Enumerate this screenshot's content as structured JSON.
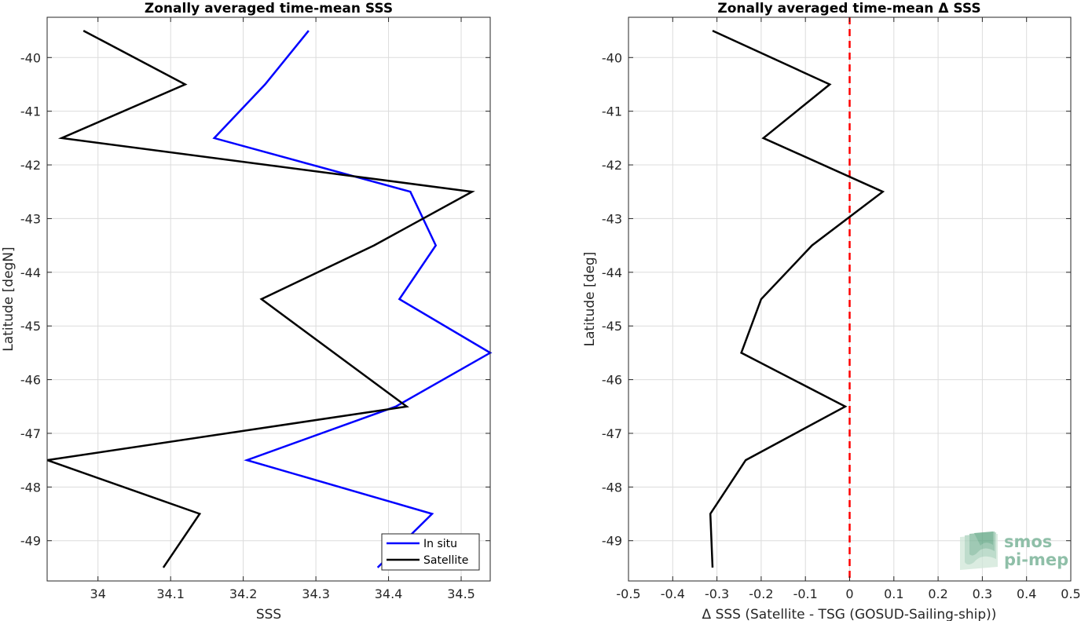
{
  "chart_data": [
    {
      "type": "line",
      "title": "Zonally averaged time-mean SSS",
      "xlabel": "SSS",
      "ylabel": "Latitude [degN]",
      "xlim": [
        33.93,
        34.54
      ],
      "ylim": [
        -49.75,
        -39.25
      ],
      "xticks": [
        34,
        34.1,
        34.2,
        34.3,
        34.4,
        34.5
      ],
      "xtick_labels": [
        "34",
        "34.1",
        "34.2",
        "34.3",
        "34.4",
        "34.5"
      ],
      "yticks": [
        -40,
        -41,
        -42,
        -43,
        -44,
        -45,
        -46,
        -47,
        -48,
        -49
      ],
      "ytick_labels": [
        "-40",
        "-41",
        "-42",
        "-43",
        "-44",
        "-45",
        "-46",
        "-47",
        "-48",
        "-49"
      ],
      "grid": true,
      "legend": "bottom-right",
      "series": [
        {
          "name": "In situ",
          "color": "#0000ff",
          "x": [
            34.29,
            34.23,
            34.16,
            34.43,
            34.465,
            34.415,
            34.54,
            34.41,
            34.205,
            34.46,
            34.385
          ],
          "y": [
            -39.5,
            -40.5,
            -41.5,
            -42.5,
            -43.5,
            -44.5,
            -45.5,
            -46.5,
            -47.5,
            -48.5,
            -49.5
          ]
        },
        {
          "name": "Satellite",
          "color": "#000000",
          "x": [
            33.98,
            34.12,
            33.95,
            34.515,
            34.38,
            34.225,
            34.425,
            33.93,
            34.14,
            34.09
          ],
          "y": [
            -39.5,
            -40.5,
            -41.5,
            -42.5,
            -43.5,
            -44.5,
            -46.5,
            -47.5,
            -48.5,
            -49.5
          ]
        }
      ]
    },
    {
      "type": "line",
      "title": "Zonally averaged time-mean Δ SSS",
      "xlabel": "Δ SSS (Satellite - TSG (GOSUD-Sailing-ship))",
      "ylabel": "Latitude [deg]",
      "xlim": [
        -0.5,
        0.5
      ],
      "ylim": [
        -49.75,
        -39.25
      ],
      "xticks": [
        -0.5,
        -0.4,
        -0.3,
        -0.2,
        -0.1,
        0,
        0.1,
        0.2,
        0.3,
        0.4,
        0.5
      ],
      "xtick_labels": [
        "-0.5",
        "-0.4",
        "-0.3",
        "-0.2",
        "-0.1",
        "0",
        "0.1",
        "0.2",
        "0.3",
        "0.4",
        "0.5"
      ],
      "yticks": [
        -40,
        -41,
        -42,
        -43,
        -44,
        -45,
        -46,
        -47,
        -48,
        -49
      ],
      "ytick_labels": [
        "-40",
        "-41",
        "-42",
        "-43",
        "-44",
        "-45",
        "-46",
        "-47",
        "-48",
        "-49"
      ],
      "grid": true,
      "reference_line": {
        "x": 0,
        "color": "#ff0000",
        "style": "dashed"
      },
      "series": [
        {
          "color": "#000000",
          "x": [
            -0.31,
            -0.045,
            -0.195,
            0.075,
            -0.085,
            -0.2,
            -0.245,
            -0.01,
            -0.235,
            -0.315,
            -0.31
          ],
          "y": [
            -39.5,
            -40.5,
            -41.5,
            -42.5,
            -43.5,
            -44.5,
            -45.5,
            -46.5,
            -47.5,
            -48.5,
            -49.5
          ]
        }
      ]
    }
  ],
  "watermark": {
    "line1": "smos",
    "line2": "pi-mep",
    "color": "#8fbfa8"
  }
}
